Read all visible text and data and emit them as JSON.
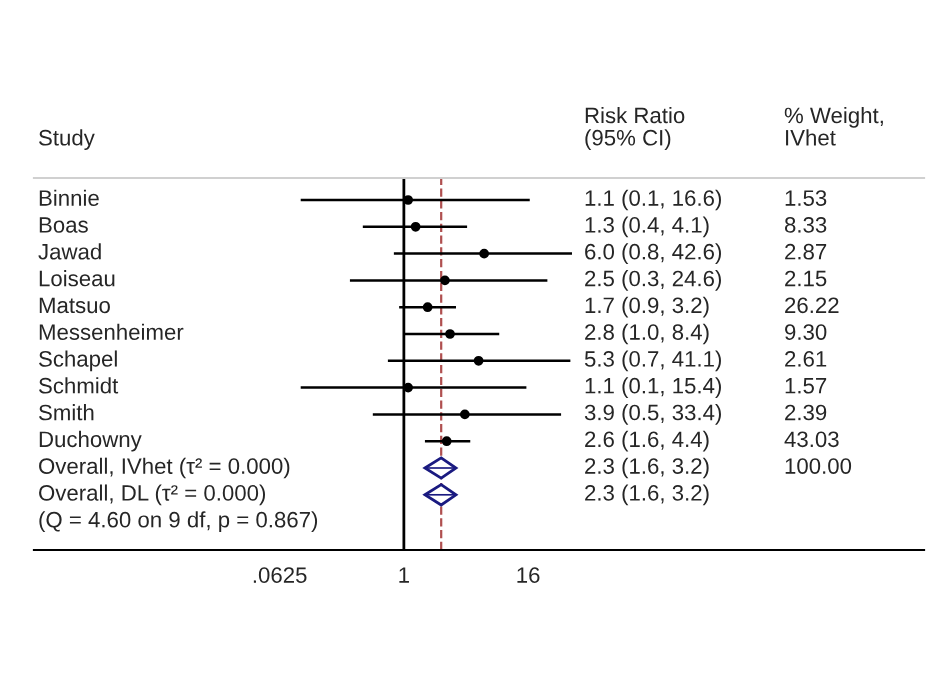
{
  "chart_data": {
    "type": "scatter",
    "orientation": "horizontal",
    "log": "x",
    "grid": false,
    "xlim": [
      0.00026,
      110000
    ],
    "xticks": [
      {
        "value": 0.0625,
        "label": ".0625"
      },
      1,
      16
    ],
    "categories": [
      "Binnie",
      "Boas",
      "Jawad",
      "Loiseau",
      "Matsuo",
      "Messenheimer",
      "Schapel",
      "Schmidt",
      "Smith",
      "Duchowny",
      "Overall, IVhet (τ² = 0.000)",
      "Overall, DL (τ² = 0.000)"
    ],
    "series": [
      {
        "color": "#000000",
        "marker": "circle",
        "values": [
          1.1,
          1.3,
          6.0,
          2.5,
          1.7,
          2.8,
          5.3,
          1.1,
          3.9,
          2.6,
          null,
          null
        ],
        "errors": [
          [
            0.1,
            16.6
          ],
          [
            0.4,
            4.1
          ],
          [
            0.8,
            42.6
          ],
          [
            0.3,
            24.6
          ],
          [
            0.9,
            3.2
          ],
          [
            1.0,
            8.4
          ],
          [
            0.7,
            41.1
          ],
          [
            0.1,
            15.4
          ],
          [
            0.5,
            33.4
          ],
          [
            1.6,
            4.4
          ],
          null,
          null
        ]
      },
      {
        "color": "#1a1a80",
        "marker": "diamond",
        "values": [
          null,
          null,
          null,
          null,
          null,
          null,
          null,
          null,
          null,
          null,
          2.3,
          2.3
        ],
        "errors": [
          null,
          null,
          null,
          null,
          null,
          null,
          null,
          null,
          null,
          null,
          [
            1.6,
            3.2
          ],
          [
            1.6,
            3.2
          ]
        ]
      }
    ],
    "ref_lines": [
      {
        "axis": "x",
        "value": 1,
        "color": "#000000",
        "line_style": "solid"
      },
      {
        "axis": "x",
        "value": 2.3,
        "color": "#b05050",
        "line_style": "dashed"
      }
    ],
    "annotations": [
      "Study",
      "Risk Ratio\n(95% CI)",
      "% Weight,\nIVhet",
      "1.1 (0.1, 16.6)",
      "1.3 (0.4, 4.1)",
      "6.0 (0.8, 42.6)",
      "2.5 (0.3, 24.6)",
      "1.7 (0.9, 3.2)",
      "2.8 (1.0, 8.4)",
      "5.3 (0.7, 41.1)",
      "1.1 (0.1, 15.4)",
      "3.9 (0.5, 33.4)",
      "2.6 (1.6, 4.4)",
      "2.3 (1.6, 3.2)",
      "2.3 (1.6, 3.2)",
      "1.53",
      "8.33",
      "2.87",
      "2.15",
      "26.22",
      "9.30",
      "2.61",
      "1.57",
      "2.39",
      "43.03",
      "100.00",
      "(Q = 4.60 on 9 df, p = 0.867)"
    ]
  }
}
